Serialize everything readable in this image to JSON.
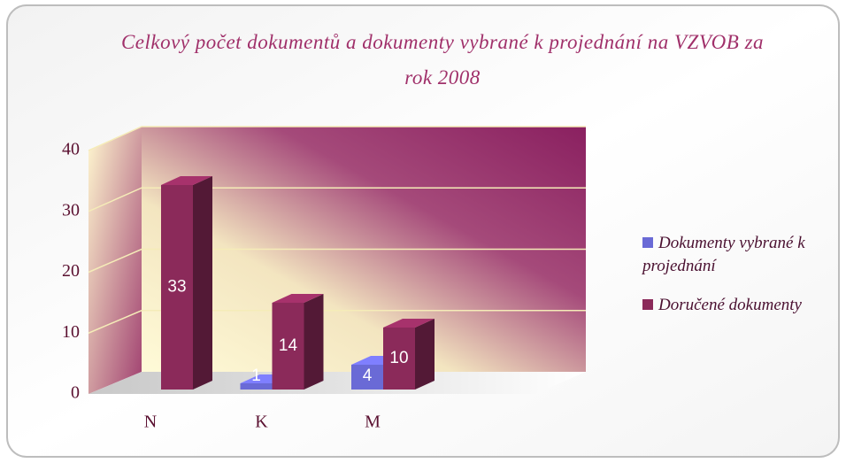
{
  "chart_data": {
    "type": "bar3d",
    "title": "Celkový počet dokumentů a dokumenty vybrané k projednání na VZVOB za rok 2008",
    "categories": [
      "N",
      "K",
      "M"
    ],
    "series": [
      {
        "name": "Dokumenty vybrané k projednání",
        "color": "#6a6ad6",
        "values": [
          null,
          1,
          4
        ]
      },
      {
        "name": "Doručené dokumenty",
        "color": "#8b2a5a",
        "values": [
          33,
          14,
          10
        ]
      }
    ],
    "ylim": [
      0,
      40
    ],
    "yticks": [
      0,
      10,
      20,
      30,
      40
    ],
    "grid": true
  }
}
